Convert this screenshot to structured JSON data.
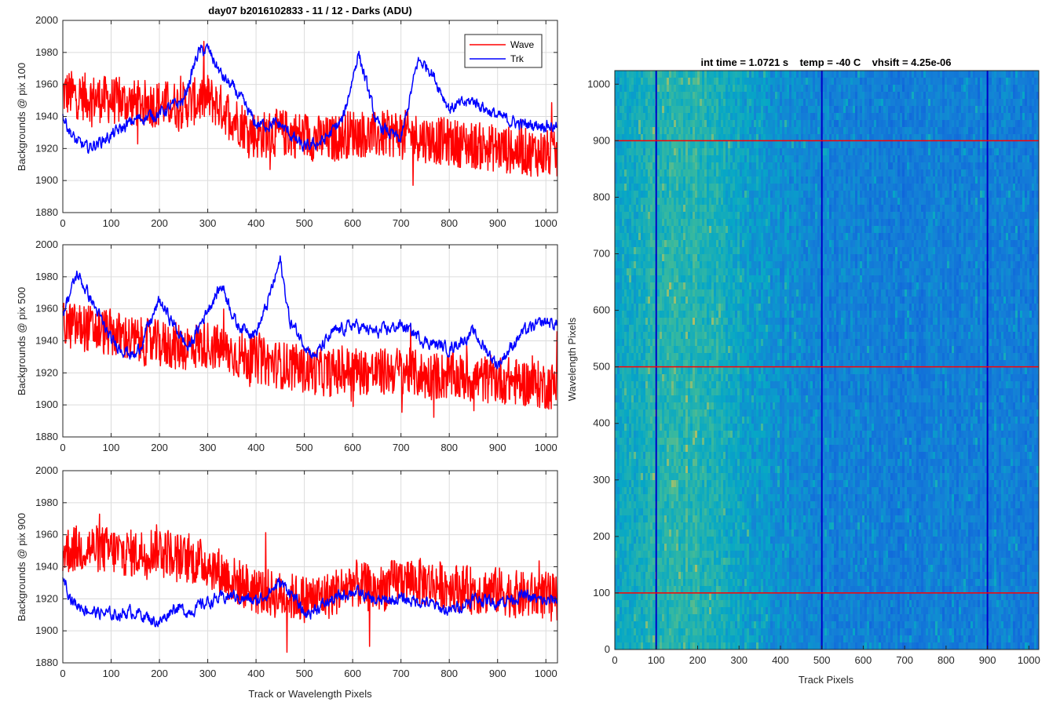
{
  "chart_data": [
    {
      "type": "line",
      "title": "day07 b2016102833 - 11 / 12 - Darks (ADU)",
      "ylabel": "Backgrounds @ pix 100",
      "xlabel": "",
      "xlim": [
        0,
        1024
      ],
      "ylim": [
        1880,
        2000
      ],
      "xticks": [
        0,
        100,
        200,
        300,
        400,
        500,
        600,
        700,
        800,
        900,
        1000
      ],
      "yticks": [
        1880,
        1900,
        1920,
        1940,
        1960,
        1980,
        2000
      ],
      "grid": true,
      "legend": {
        "placement": "top-right",
        "entries": [
          "Wave",
          "Trk"
        ]
      },
      "series": [
        {
          "name": "Wave",
          "color": "#ff0000",
          "x": [
            0,
            50,
            100,
            150,
            200,
            250,
            300,
            350,
            400,
            450,
            500,
            550,
            600,
            650,
            700,
            750,
            800,
            850,
            900,
            950,
            1000,
            1024
          ],
          "y": [
            1955,
            1952,
            1950,
            1948,
            1948,
            1947,
            1952,
            1940,
            1928,
            1930,
            1928,
            1925,
            1930,
            1928,
            1930,
            1926,
            1924,
            1922,
            1920,
            1918,
            1917,
            1915
          ]
        },
        {
          "name": "Trk",
          "color": "#0000ff",
          "x": [
            0,
            25,
            50,
            100,
            150,
            200,
            250,
            280,
            300,
            330,
            360,
            400,
            450,
            500,
            540,
            580,
            612,
            650,
            700,
            735,
            760,
            800,
            850,
            900,
            950,
            1000,
            1024
          ],
          "y": [
            1940,
            1925,
            1920,
            1928,
            1938,
            1942,
            1950,
            1980,
            1982,
            1965,
            1955,
            1935,
            1935,
            1920,
            1925,
            1938,
            1980,
            1935,
            1925,
            1975,
            1970,
            1945,
            1950,
            1940,
            1935,
            1935,
            1933
          ]
        }
      ]
    },
    {
      "type": "line",
      "title": "",
      "ylabel": "Backgrounds @ pix 500",
      "xlabel": "",
      "xlim": [
        0,
        1024
      ],
      "ylim": [
        1880,
        2000
      ],
      "xticks": [
        0,
        100,
        200,
        300,
        400,
        500,
        600,
        700,
        800,
        900,
        1000
      ],
      "yticks": [
        1880,
        1900,
        1920,
        1940,
        1960,
        1980,
        2000
      ],
      "grid": true,
      "series": [
        {
          "name": "Wave",
          "color": "#ff0000",
          "x": [
            0,
            50,
            100,
            150,
            200,
            250,
            300,
            350,
            400,
            450,
            500,
            550,
            600,
            650,
            700,
            750,
            800,
            850,
            900,
            950,
            1000,
            1024
          ],
          "y": [
            1950,
            1948,
            1945,
            1940,
            1938,
            1936,
            1938,
            1932,
            1928,
            1925,
            1922,
            1920,
            1922,
            1920,
            1922,
            1918,
            1918,
            1916,
            1916,
            1914,
            1912,
            1912
          ]
        },
        {
          "name": "Trk",
          "color": "#0000ff",
          "x": [
            0,
            30,
            60,
            100,
            150,
            200,
            230,
            260,
            300,
            330,
            360,
            400,
            420,
            450,
            470,
            520,
            560,
            600,
            650,
            700,
            750,
            800,
            850,
            900,
            950,
            1000,
            1024
          ],
          "y": [
            1958,
            1982,
            1965,
            1940,
            1930,
            1965,
            1950,
            1935,
            1960,
            1975,
            1950,
            1945,
            1960,
            1990,
            1952,
            1930,
            1945,
            1950,
            1945,
            1950,
            1940,
            1935,
            1945,
            1925,
            1945,
            1952,
            1950
          ]
        }
      ]
    },
    {
      "type": "line",
      "title": "",
      "ylabel": "Backgrounds @ pix 900",
      "xlabel": "Track or Wavelength Pixels",
      "xlim": [
        0,
        1024
      ],
      "ylim": [
        1880,
        2000
      ],
      "xticks": [
        0,
        100,
        200,
        300,
        400,
        500,
        600,
        700,
        800,
        900,
        1000
      ],
      "yticks": [
        1880,
        1900,
        1920,
        1940,
        1960,
        1980,
        2000
      ],
      "grid": true,
      "series": [
        {
          "name": "Wave",
          "color": "#ff0000",
          "x": [
            0,
            50,
            100,
            150,
            200,
            250,
            300,
            350,
            400,
            450,
            500,
            550,
            600,
            650,
            700,
            750,
            800,
            850,
            900,
            950,
            1000,
            1024
          ],
          "y": [
            1950,
            1952,
            1950,
            1948,
            1952,
            1945,
            1942,
            1932,
            1925,
            1922,
            1920,
            1922,
            1930,
            1925,
            1932,
            1930,
            1928,
            1925,
            1925,
            1922,
            1922,
            1920
          ]
        },
        {
          "name": "Trk",
          "color": "#0000ff",
          "x": [
            0,
            20,
            60,
            100,
            150,
            200,
            230,
            260,
            300,
            350,
            400,
            450,
            470,
            500,
            550,
            600,
            650,
            700,
            750,
            800,
            850,
            900,
            950,
            1000,
            1024
          ],
          "y": [
            1935,
            1918,
            1912,
            1910,
            1912,
            1905,
            1915,
            1912,
            1918,
            1922,
            1918,
            1930,
            1925,
            1910,
            1918,
            1925,
            1918,
            1920,
            1918,
            1912,
            1920,
            1918,
            1922,
            1918,
            1920
          ]
        }
      ]
    },
    {
      "type": "heatmap",
      "title": "int time = 1.0721 s    temp = -40 C    vhsift = 4.25e-06",
      "xlabel": "Track Pixels",
      "ylabel": "Wavelength Pixels",
      "xlim": [
        0,
        1024
      ],
      "ylim": [
        0,
        1024
      ],
      "xticks": [
        0,
        100,
        200,
        300,
        400,
        500,
        600,
        700,
        800,
        900,
        1000
      ],
      "yticks": [
        0,
        100,
        200,
        300,
        400,
        500,
        600,
        700,
        800,
        900,
        1000
      ],
      "colormap": "parula",
      "column_trend": {
        "x": [
          0,
          50,
          100,
          150,
          200,
          250,
          300,
          350,
          400,
          500,
          600,
          700,
          800,
          900,
          1024
        ],
        "level": [
          0.55,
          0.6,
          0.62,
          0.65,
          0.64,
          0.6,
          0.55,
          0.5,
          0.45,
          0.4,
          0.38,
          0.37,
          0.38,
          0.38,
          0.36
        ]
      },
      "vertical_markers": {
        "x": [
          100,
          500,
          900
        ],
        "color": "#0000c8"
      },
      "horizontal_markers": {
        "y": [
          100,
          500,
          900
        ],
        "color": "#ff0000"
      }
    }
  ]
}
